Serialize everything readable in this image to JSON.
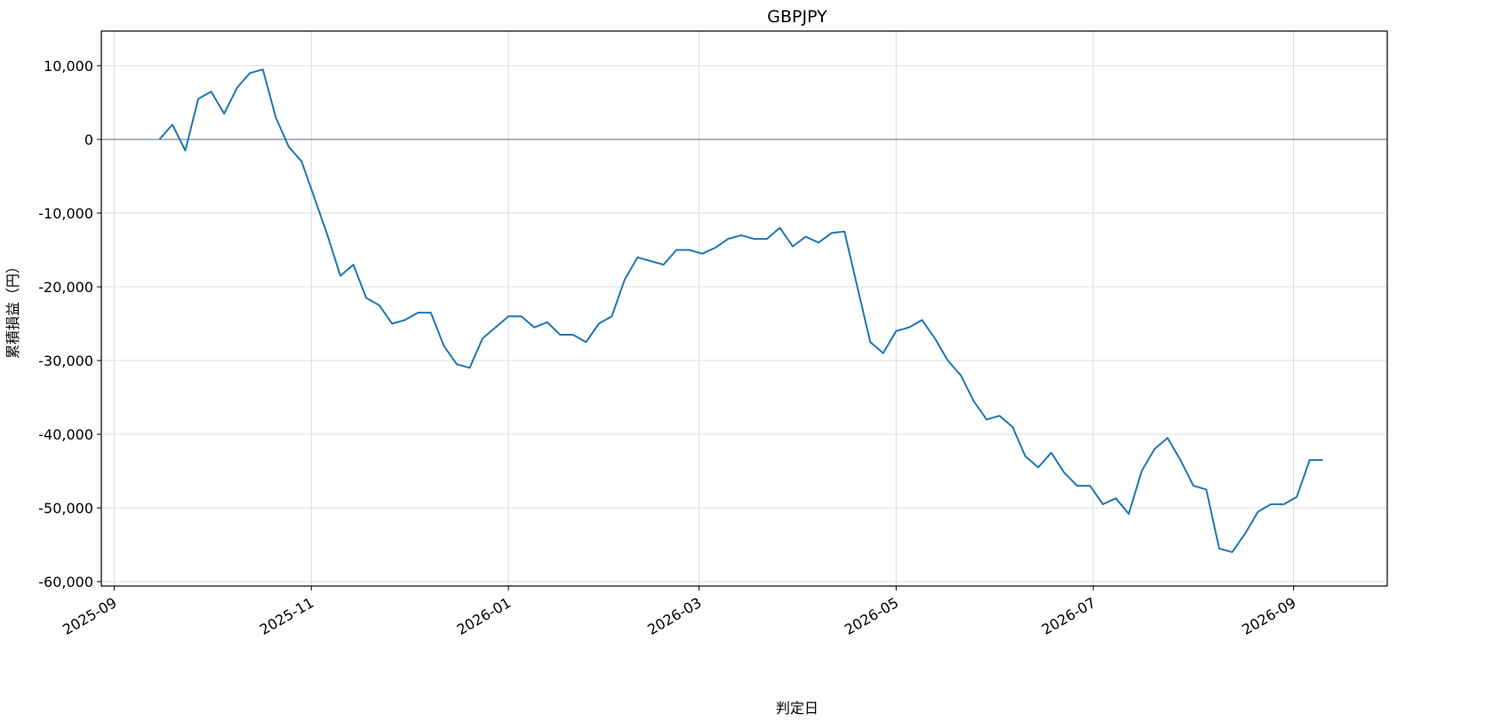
{
  "chart_data": {
    "type": "line",
    "title": "GBPJPY",
    "xlabel": "判定日",
    "ylabel": "累積損益（円）",
    "x": [
      "2025-09-15",
      "2025-09-19",
      "2025-09-23",
      "2025-09-27",
      "2025-10-01",
      "2025-10-05",
      "2025-10-09",
      "2025-10-13",
      "2025-10-17",
      "2025-10-21",
      "2025-10-25",
      "2025-10-29",
      "2025-11-02",
      "2025-11-06",
      "2025-11-10",
      "2025-11-14",
      "2025-11-18",
      "2025-11-22",
      "2025-11-26",
      "2025-11-30",
      "2025-12-04",
      "2025-12-08",
      "2025-12-12",
      "2025-12-16",
      "2025-12-20",
      "2025-12-24",
      "2025-12-28",
      "2026-01-01",
      "2026-01-05",
      "2026-01-09",
      "2026-01-13",
      "2026-01-17",
      "2026-01-21",
      "2026-01-25",
      "2026-01-29",
      "2026-02-02",
      "2026-02-06",
      "2026-02-10",
      "2026-02-14",
      "2026-02-18",
      "2026-02-22",
      "2026-02-26",
      "2026-03-02",
      "2026-03-06",
      "2026-03-10",
      "2026-03-14",
      "2026-03-18",
      "2026-03-22",
      "2026-03-26",
      "2026-03-30",
      "2026-04-03",
      "2026-04-07",
      "2026-04-11",
      "2026-04-15",
      "2026-04-19",
      "2026-04-23",
      "2026-04-27",
      "2026-05-01",
      "2026-05-05",
      "2026-05-09",
      "2026-05-13",
      "2026-05-17",
      "2026-05-21",
      "2026-05-25",
      "2026-05-29",
      "2026-06-02",
      "2026-06-06",
      "2026-06-10",
      "2026-06-14",
      "2026-06-18",
      "2026-06-22",
      "2026-06-26",
      "2026-06-30",
      "2026-07-04",
      "2026-07-08",
      "2026-07-12",
      "2026-07-16",
      "2026-07-20",
      "2026-07-24",
      "2026-07-28",
      "2026-08-01",
      "2026-08-05",
      "2026-08-09",
      "2026-08-13",
      "2026-08-17",
      "2026-08-21",
      "2026-08-25",
      "2026-08-29",
      "2026-09-02",
      "2026-09-06",
      "2026-09-10"
    ],
    "series": [
      {
        "name": "GBPJPY",
        "color": "#1f77b4",
        "values": [
          0,
          2000,
          -1500,
          5500,
          6500,
          3500,
          7000,
          9000,
          9500,
          3000,
          -1000,
          -3000,
          -8000,
          -13000,
          -18500,
          -17000,
          -21500,
          -22500,
          -25000,
          -24500,
          -23500,
          -23500,
          -28000,
          -30500,
          -31000,
          -27000,
          -25500,
          -24000,
          -24000,
          -25500,
          -24800,
          -26500,
          -26500,
          -27500,
          -25000,
          -24000,
          -19000,
          -16000,
          -16500,
          -17000,
          -15000,
          -15000,
          -15500,
          -14700,
          -13500,
          -13000,
          -13500,
          -13500,
          -12000,
          -14500,
          -13200,
          -14000,
          -12700,
          -12500,
          -20000,
          -27500,
          -29000,
          -26000,
          -25500,
          -24500,
          -27000,
          -30000,
          -32000,
          -35500,
          -38000,
          -37500,
          -39000,
          -43000,
          -44500,
          -42500,
          -45200,
          -47000,
          -47000,
          -49500,
          -48700,
          -50800,
          -45000,
          -42000,
          -40500,
          -43500,
          -47000,
          -47500,
          -55500,
          -56000,
          -53500,
          -50500,
          -49500,
          -49500,
          -48500,
          -43500,
          -43500
        ]
      }
    ],
    "reference_line": 0,
    "reference_color": "#5a6b78",
    "xlim": [
      "2025-08-28",
      "2026-09-30"
    ],
    "xticks": [
      {
        "value": "2025-09-01",
        "label": "2025-09"
      },
      {
        "value": "2025-11-01",
        "label": "2025-11"
      },
      {
        "value": "2026-01-01",
        "label": "2026-01"
      },
      {
        "value": "2026-03-01",
        "label": "2026-03"
      },
      {
        "value": "2026-05-01",
        "label": "2026-05"
      },
      {
        "value": "2026-07-01",
        "label": "2026-07"
      },
      {
        "value": "2026-09-01",
        "label": "2026-09"
      }
    ],
    "ylim": [
      -60600,
      14700
    ],
    "yticks": [
      {
        "value": -60000,
        "label": "-60,000"
      },
      {
        "value": -50000,
        "label": "-50,000"
      },
      {
        "value": -40000,
        "label": "-40,000"
      },
      {
        "value": -30000,
        "label": "-30,000"
      },
      {
        "value": -20000,
        "label": "-20,000"
      },
      {
        "value": -10000,
        "label": "-10,000"
      },
      0,
      {
        "value": 10000,
        "label": "10,000"
      }
    ],
    "grid": true
  }
}
